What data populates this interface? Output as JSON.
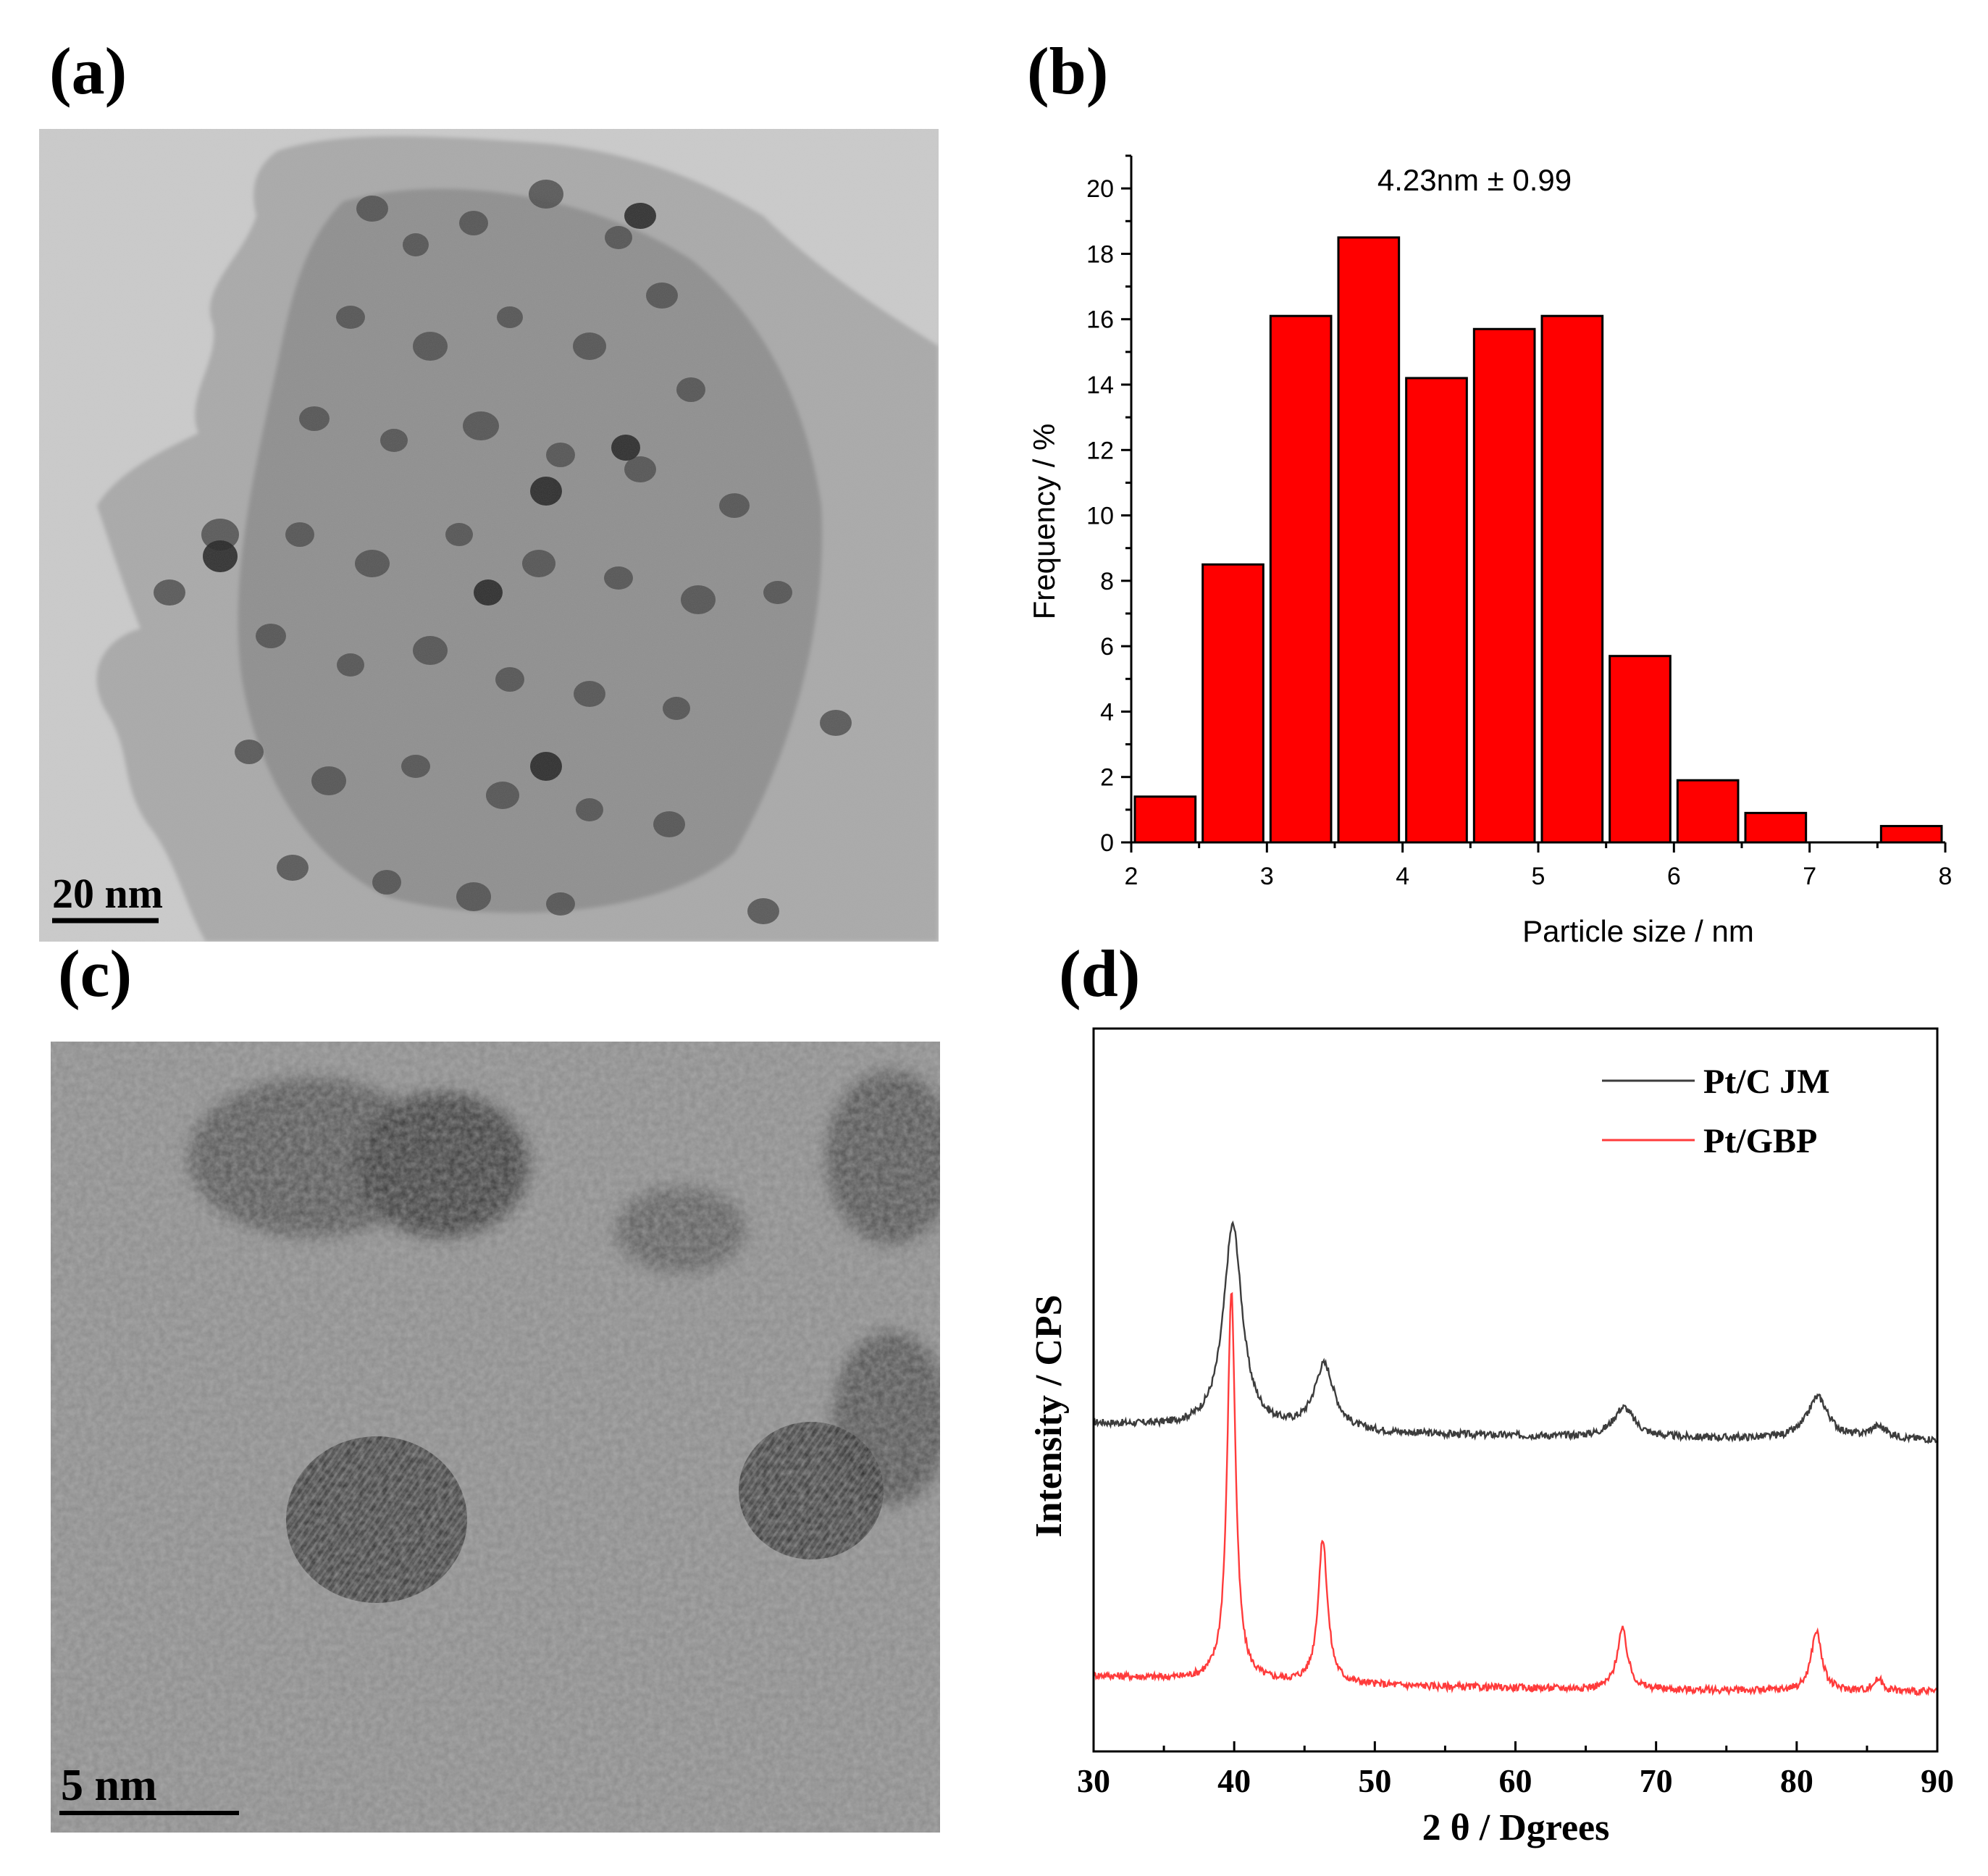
{
  "panels": {
    "a": {
      "label": "(a)",
      "scale_bar": "20 nm"
    },
    "b": {
      "label": "(b)"
    },
    "c": {
      "label": "(c)",
      "scale_bar": "5 nm"
    },
    "d": {
      "label": "(d)"
    }
  },
  "chart_data": [
    {
      "panel": "b",
      "type": "bar",
      "annotation": "4.23nm ± 0.99",
      "xlabel": "Particle size / nm",
      "ylabel": "Frequency / %",
      "xlim": [
        2,
        8
      ],
      "ylim": [
        0,
        21
      ],
      "xticks": [
        2,
        3,
        4,
        5,
        6,
        7,
        8
      ],
      "yticks": [
        0,
        2,
        4,
        6,
        8,
        10,
        12,
        14,
        16,
        18,
        20
      ],
      "bin_width": 0.5,
      "bins": [
        {
          "center": 2.25,
          "value": 1.4
        },
        {
          "center": 2.75,
          "value": 8.5
        },
        {
          "center": 3.25,
          "value": 16.1
        },
        {
          "center": 3.75,
          "value": 18.5
        },
        {
          "center": 4.25,
          "value": 14.2
        },
        {
          "center": 4.75,
          "value": 15.7
        },
        {
          "center": 5.25,
          "value": 16.1
        },
        {
          "center": 5.75,
          "value": 5.7
        },
        {
          "center": 6.25,
          "value": 1.9
        },
        {
          "center": 6.75,
          "value": 0.9
        },
        {
          "center": 7.25,
          "value": 0
        },
        {
          "center": 7.75,
          "value": 0.5
        }
      ],
      "bar_color": "#ff0000"
    },
    {
      "panel": "d",
      "type": "line",
      "xlabel": "2 θ / Dgrees",
      "ylabel": "Intensity / CPS",
      "xlim": [
        30,
        90
      ],
      "xticks": [
        30,
        40,
        50,
        60,
        70,
        80,
        90
      ],
      "y_units": "arbitrary (stacked, offset)",
      "series": [
        {
          "name": "Pt/C JM",
          "color": "#3c3c3c",
          "baseline": 0.42,
          "peaks": [
            {
              "x": 39.9,
              "height": 0.34,
              "width": 1.6
            },
            {
              "x": 46.4,
              "height": 0.11,
              "width": 1.7
            },
            {
              "x": 67.7,
              "height": 0.05,
              "width": 1.8
            },
            {
              "x": 81.5,
              "height": 0.07,
              "width": 1.8
            },
            {
              "x": 85.8,
              "height": 0.02,
              "width": 1.5
            }
          ]
        },
        {
          "name": "Pt/GBP",
          "color": "#ff3b3b",
          "baseline": 0.0,
          "peaks": [
            {
              "x": 39.8,
              "height": 0.65,
              "width": 0.7
            },
            {
              "x": 46.3,
              "height": 0.24,
              "width": 0.8
            },
            {
              "x": 67.6,
              "height": 0.1,
              "width": 0.9
            },
            {
              "x": 81.4,
              "height": 0.1,
              "width": 0.9
            },
            {
              "x": 85.8,
              "height": 0.02,
              "width": 0.8
            }
          ]
        }
      ],
      "legend_position": "top-right"
    }
  ]
}
